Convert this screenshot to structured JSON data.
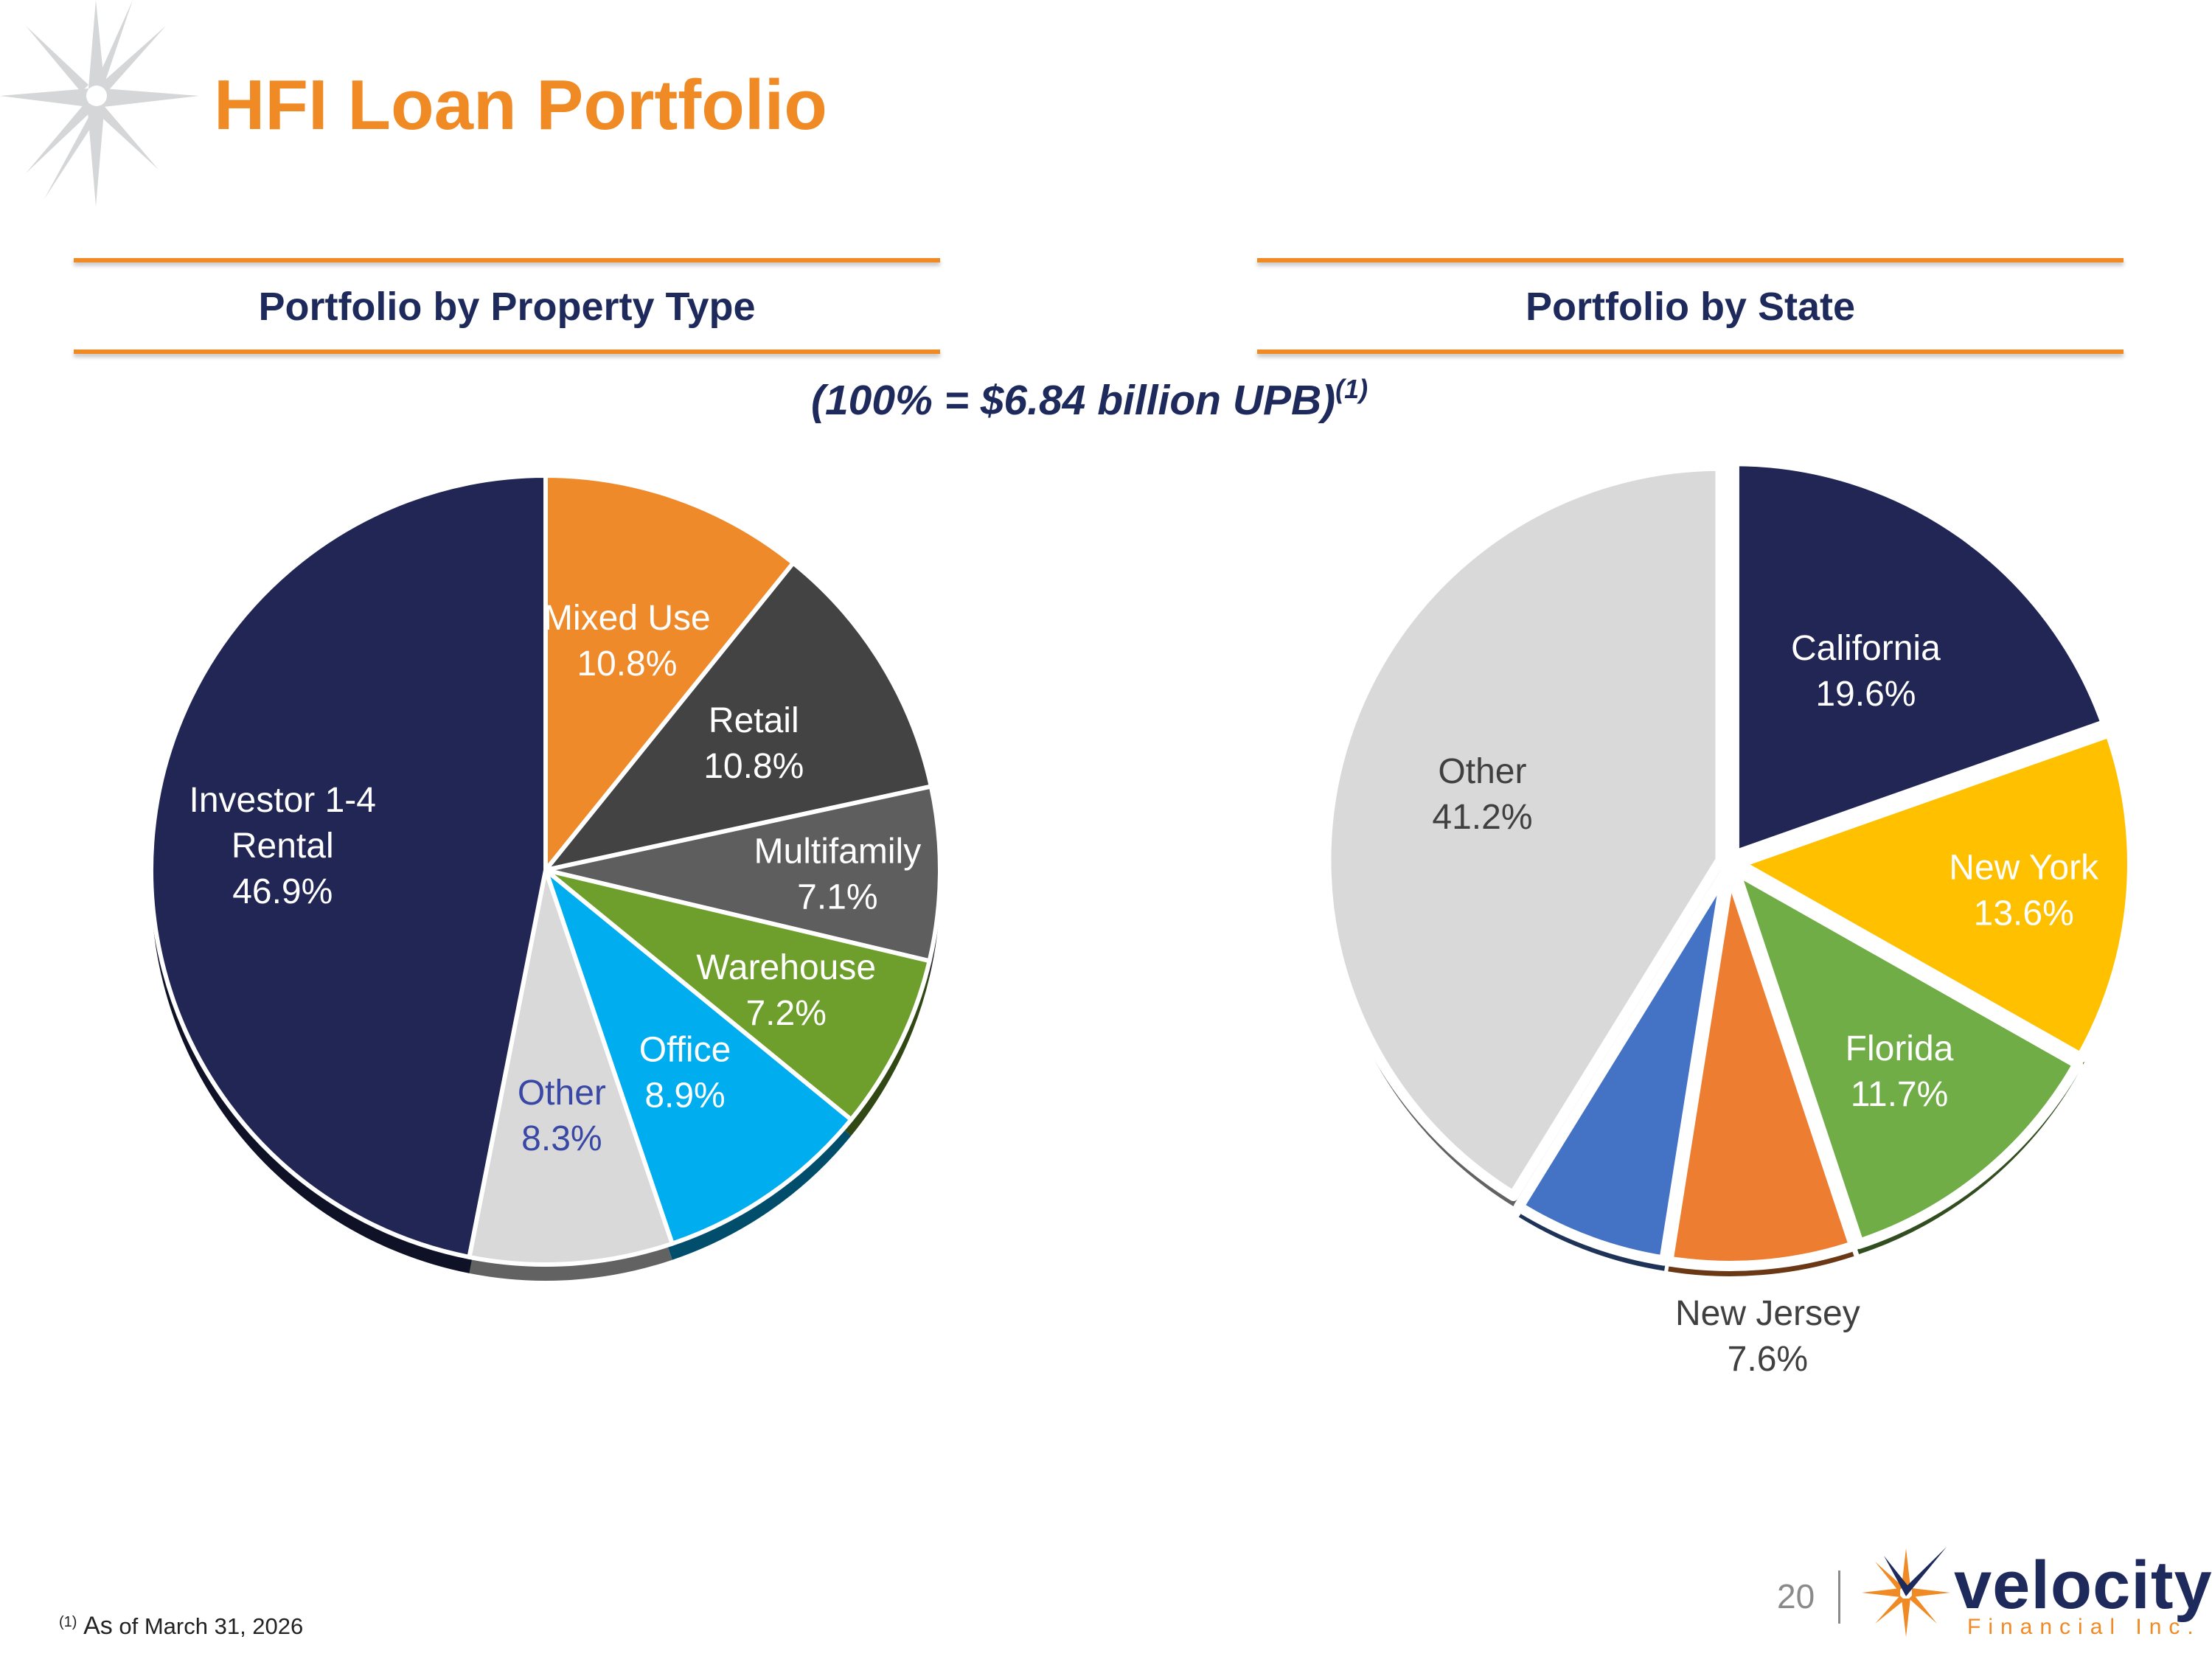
{
  "page": {
    "title": "HFI Loan Portfolio",
    "subtitle_main": "(100% = $6.84 billion UPB)",
    "subtitle_sup": "(1)",
    "footnote_sup": "(1)",
    "footnote_as": "As",
    "footnote_text": " of March 31, 2026",
    "page_number": "20",
    "logo_word": "velocity",
    "logo_sub": "Financial Inc."
  },
  "sections": {
    "left_title": "Portfolio by Property Type",
    "right_title": "Portfolio by State"
  },
  "colors": {
    "accent_orange": "#f08a24",
    "navy": "#1f2a5c"
  },
  "chart_data": [
    {
      "type": "pie",
      "title": "Portfolio by Property Type",
      "start_angle_deg": 0,
      "slices": [
        {
          "label": "Mixed Use",
          "value": 10.8,
          "value_label": "10.8%",
          "color": "#ef8a2a",
          "label_color": "#ffffff"
        },
        {
          "label": "Retail",
          "value": 10.8,
          "value_label": "10.8%",
          "color": "#434343",
          "label_color": "#ffffff"
        },
        {
          "label": "Multifamily",
          "value": 7.1,
          "value_label": "7.1%",
          "color": "#5e5e5e",
          "label_color": "#ffffff"
        },
        {
          "label": "Warehouse",
          "value": 7.2,
          "value_label": "7.2%",
          "color": "#6e9f2c",
          "label_color": "#ffffff"
        },
        {
          "label": "Office",
          "value": 8.9,
          "value_label": "8.9%",
          "color": "#00aeef",
          "label_color": "#ffffff"
        },
        {
          "label": "Other",
          "value": 8.3,
          "value_label": "8.3%",
          "color": "#d9d9d9",
          "label_color": "#3a48a5"
        },
        {
          "label": "Investor 1-4\nRental",
          "value": 46.9,
          "value_label": "46.9%",
          "color": "#212654",
          "label_color": "#ffffff"
        }
      ]
    },
    {
      "type": "pie",
      "title": "Portfolio by State",
      "start_angle_deg": 0,
      "slices": [
        {
          "label": "California",
          "value": 19.6,
          "value_label": "19.6%",
          "color": "#212654",
          "label_color": "#ffffff"
        },
        {
          "label": "New York",
          "value": 13.6,
          "value_label": "13.6%",
          "color": "#ffc000",
          "label_color": "#ffffff"
        },
        {
          "label": "Florida",
          "value": 11.7,
          "value_label": "11.7%",
          "color": "#70ad47",
          "label_color": "#ffffff"
        },
        {
          "label": "New Jersey",
          "value": 7.6,
          "value_label": "7.6%",
          "color": "#ed7d31",
          "label_color": "#404040"
        },
        {
          "label": "",
          "value": 6.3,
          "value_label": "",
          "color": "#4472c4",
          "label_color": "#ffffff"
        },
        {
          "label": "Other",
          "value": 41.2,
          "value_label": "41.2%",
          "color": "#d9d9d9",
          "label_color": "#404040"
        }
      ]
    }
  ]
}
